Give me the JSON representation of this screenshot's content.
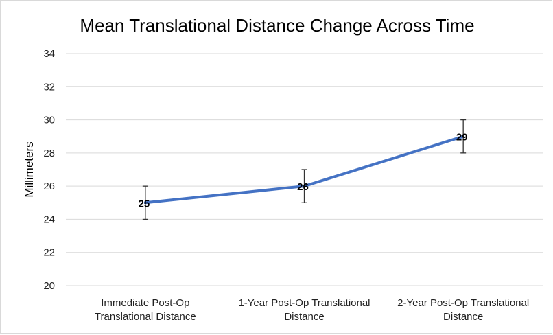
{
  "chart_data": {
    "type": "line",
    "title": "Mean Translational Distance Change Across Time",
    "xlabel": "",
    "ylabel": "Millimeters",
    "categories": [
      [
        "Immediate Post-Op",
        "Translational Distance"
      ],
      [
        "1-Year Post-Op Translational",
        "Distance"
      ],
      [
        "2-Year Post-Op Translational",
        "Distance"
      ]
    ],
    "series": [
      {
        "values": [
          25,
          26,
          29
        ],
        "error": [
          1,
          1,
          1
        ],
        "data_labels": [
          "25",
          "26",
          "29"
        ],
        "color": "#4472C4"
      }
    ],
    "ylim": [
      20,
      34
    ],
    "yticks": [
      20,
      22,
      24,
      26,
      28,
      30,
      32,
      34
    ],
    "ytick_labels": [
      "20",
      "22",
      "24",
      "26",
      "28",
      "30",
      "32",
      "34"
    ],
    "grid": true,
    "legend": "none"
  }
}
